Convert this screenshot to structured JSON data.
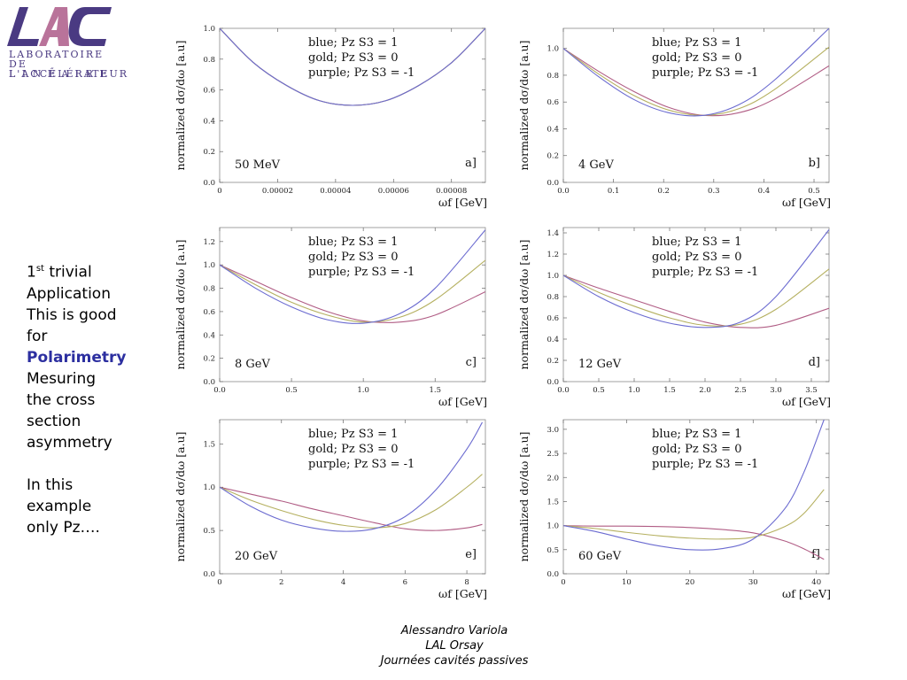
{
  "logo": {
    "lines": [
      "LABORATOIRE",
      "DE L'ACCÉLÉRATEUR",
      "L I N É A I R E"
    ],
    "colors": {
      "primary": "#4a3a82",
      "accent": "#b9739a"
    }
  },
  "sidebar": {
    "line1_num": "1",
    "line1_sup": "st",
    "line1_rest": " trivial",
    "lines": [
      "Application",
      "This is good",
      "for"
    ],
    "highlight": "Polarimetry",
    "lines2": [
      "Mesuring",
      "the cross",
      "section",
      "asymmetry"
    ],
    "lines3": [
      "In this",
      "example",
      "only Pz…."
    ]
  },
  "footer": {
    "author": "Alessandro Variola",
    "lab": "LAL Orsay",
    "event": "Journées cavités passives"
  },
  "colors": {
    "blue": "#6b6bd0",
    "gold": "#b5b060",
    "purple": "#b05c84"
  },
  "chart_data": [
    {
      "type": "line",
      "id": "a",
      "label": "a]",
      "energy": "50 MeV",
      "legend": [
        "blue; Pz S3 = 1",
        "gold; Pz S3 = 0",
        "purple; Pz S3 = -1"
      ],
      "xlabel": "ωf [GeV]",
      "ylabel": "normalized dσ/dω [a.u]",
      "xlim": [
        0,
        9.17e-05
      ],
      "ylim": [
        0,
        1.0
      ],
      "xticks": [
        0,
        2e-05,
        4e-05,
        6e-05,
        8e-05
      ],
      "xticklabels": [
        "0",
        "0.00002",
        "0.00004",
        "0.00006",
        "0.00008"
      ],
      "yticks": [
        0,
        0.2,
        0.4,
        0.6,
        0.8,
        1.0
      ],
      "yticklabels": [
        "0.0",
        "0.2",
        "0.4",
        "0.6",
        "0.8",
        "1.0"
      ],
      "series": [
        {
          "name": "blue; Pz S3 = 1",
          "color": "blue",
          "x": [
            0,
            1.15e-05,
            2.3e-05,
            3.45e-05,
            4.59e-05,
            5.73e-05,
            6.88e-05,
            8.02e-05,
            9.17e-05
          ],
          "y": [
            1.0,
            0.78,
            0.63,
            0.53,
            0.5,
            0.53,
            0.63,
            0.78,
            1.0
          ]
        },
        {
          "name": "gold; Pz S3 = 0",
          "color": "gold",
          "x": [
            0,
            1.15e-05,
            2.3e-05,
            3.45e-05,
            4.59e-05,
            5.73e-05,
            6.88e-05,
            8.02e-05,
            9.17e-05
          ],
          "y": [
            1.0,
            0.78,
            0.63,
            0.53,
            0.5,
            0.53,
            0.63,
            0.78,
            1.0
          ]
        },
        {
          "name": "purple; Pz S3 = -1",
          "color": "purple",
          "x": [
            0,
            1.15e-05,
            2.3e-05,
            3.45e-05,
            4.59e-05,
            5.73e-05,
            6.88e-05,
            8.02e-05,
            9.17e-05
          ],
          "y": [
            1.0,
            0.78,
            0.63,
            0.53,
            0.5,
            0.53,
            0.63,
            0.78,
            1.0
          ]
        }
      ]
    },
    {
      "type": "line",
      "id": "b",
      "label": "b]",
      "energy": "4 GeV",
      "legend": [
        "blue; Pz S3 = 1",
        "gold; Pz S3 = 0",
        "purple; Pz S3 = -1"
      ],
      "xlabel": "ωf [GeV]",
      "ylabel": "normalized dσ/dω [a.u]",
      "xlim": [
        0,
        0.53
      ],
      "ylim": [
        0,
        1.15
      ],
      "xticks": [
        0,
        0.1,
        0.2,
        0.3,
        0.4,
        0.5
      ],
      "xticklabels": [
        "0.0",
        "0.1",
        "0.2",
        "0.3",
        "0.4",
        "0.5"
      ],
      "yticks": [
        0,
        0.2,
        0.4,
        0.6,
        0.8,
        1.0
      ],
      "yticklabels": [
        "0.0",
        "0.2",
        "0.4",
        "0.6",
        "0.8",
        "1.0"
      ],
      "series": [
        {
          "name": "blue; Pz S3 = 1",
          "color": "blue",
          "x": [
            0,
            0.07,
            0.14,
            0.21,
            0.28,
            0.35,
            0.42,
            0.53
          ],
          "y": [
            1.0,
            0.79,
            0.62,
            0.52,
            0.5,
            0.58,
            0.76,
            1.15
          ]
        },
        {
          "name": "gold; Pz S3 = 0",
          "color": "gold",
          "x": [
            0,
            0.07,
            0.14,
            0.21,
            0.28,
            0.35,
            0.42,
            0.53
          ],
          "y": [
            1.0,
            0.81,
            0.65,
            0.54,
            0.5,
            0.55,
            0.69,
            1.01
          ]
        },
        {
          "name": "purple; Pz S3 = -1",
          "color": "purple",
          "x": [
            0,
            0.07,
            0.14,
            0.21,
            0.28,
            0.35,
            0.42,
            0.53
          ],
          "y": [
            1.0,
            0.83,
            0.68,
            0.56,
            0.5,
            0.52,
            0.62,
            0.87
          ]
        }
      ]
    },
    {
      "type": "line",
      "id": "c",
      "label": "c]",
      "energy": "8 GeV",
      "legend": [
        "blue; Pz S3 = 1",
        "gold; Pz S3 = 0",
        "purple; Pz S3 = -1"
      ],
      "xlabel": "ωf [GeV]",
      "ylabel": "normalized dσ/dω [a.u]",
      "xlim": [
        0,
        1.85
      ],
      "ylim": [
        0,
        1.32
      ],
      "xticks": [
        0,
        0.5,
        1.0,
        1.5
      ],
      "xticklabels": [
        "0.0",
        "0.5",
        "1.0",
        "1.5"
      ],
      "yticks": [
        0,
        0.2,
        0.4,
        0.6,
        0.8,
        1.0,
        1.2
      ],
      "yticklabels": [
        "0.0",
        "0.2",
        "0.4",
        "0.6",
        "0.8",
        "1.0",
        "1.2"
      ],
      "series": [
        {
          "name": "blue; Pz S3 = 1",
          "color": "blue",
          "x": [
            0,
            0.25,
            0.5,
            0.75,
            1.0,
            1.25,
            1.5,
            1.85
          ],
          "y": [
            1.0,
            0.8,
            0.64,
            0.53,
            0.5,
            0.58,
            0.8,
            1.3
          ]
        },
        {
          "name": "gold; Pz S3 = 0",
          "color": "gold",
          "x": [
            0,
            0.25,
            0.5,
            0.75,
            1.0,
            1.25,
            1.5,
            1.85
          ],
          "y": [
            1.0,
            0.83,
            0.68,
            0.57,
            0.51,
            0.55,
            0.7,
            1.04
          ]
        },
        {
          "name": "purple; Pz S3 = -1",
          "color": "purple",
          "x": [
            0,
            0.25,
            0.5,
            0.75,
            1.0,
            1.25,
            1.5,
            1.85
          ],
          "y": [
            1.0,
            0.86,
            0.72,
            0.6,
            0.52,
            0.51,
            0.57,
            0.77
          ]
        }
      ]
    },
    {
      "type": "line",
      "id": "d",
      "label": "d]",
      "energy": "12 GeV",
      "legend": [
        "blue; Pz S3 = 1",
        "gold; Pz S3 = 0",
        "purple; Pz S3 = -1"
      ],
      "xlabel": "ωf [GeV]",
      "ylabel": "normalized dσ/dω [a.u]",
      "xlim": [
        0,
        3.75
      ],
      "ylim": [
        0,
        1.45
      ],
      "xticks": [
        0,
        0.5,
        1.0,
        1.5,
        2.0,
        2.5,
        3.0,
        3.5
      ],
      "xticklabels": [
        "0.0",
        "0.5",
        "1.0",
        "1.5",
        "2.0",
        "2.5",
        "3.0",
        "3.5"
      ],
      "yticks": [
        0,
        0.2,
        0.4,
        0.6,
        0.8,
        1.0,
        1.2,
        1.4
      ],
      "yticklabels": [
        "0.0",
        "0.2",
        "0.4",
        "0.6",
        "0.8",
        "1.0",
        "1.2",
        "1.4"
      ],
      "series": [
        {
          "name": "blue; Pz S3 = 1",
          "color": "blue",
          "x": [
            0,
            0.5,
            1.0,
            1.5,
            2.0,
            2.5,
            3.0,
            3.75
          ],
          "y": [
            1.0,
            0.8,
            0.65,
            0.55,
            0.51,
            0.56,
            0.8,
            1.43
          ]
        },
        {
          "name": "gold; Pz S3 = 0",
          "color": "gold",
          "x": [
            0,
            0.5,
            1.0,
            1.5,
            2.0,
            2.5,
            3.0,
            3.75
          ],
          "y": [
            1.0,
            0.84,
            0.71,
            0.6,
            0.53,
            0.54,
            0.68,
            1.06
          ]
        },
        {
          "name": "purple; Pz S3 = -1",
          "color": "purple",
          "x": [
            0,
            0.5,
            1.0,
            1.5,
            2.0,
            2.5,
            3.0,
            3.75
          ],
          "y": [
            1.0,
            0.88,
            0.77,
            0.66,
            0.56,
            0.51,
            0.53,
            0.69
          ]
        }
      ]
    },
    {
      "type": "line",
      "id": "e",
      "label": "e]",
      "energy": "20 GeV",
      "legend": [
        "blue; Pz S3 = 1",
        "gold; Pz S3 = 0",
        "purple; Pz S3 = -1"
      ],
      "xlabel": "ωf [GeV]",
      "ylabel": "normalized dσ/dω [a.u]",
      "xlim": [
        0,
        8.6
      ],
      "ylim": [
        0,
        1.78
      ],
      "xticks": [
        0,
        2,
        4,
        6,
        8
      ],
      "xticklabels": [
        "0",
        "2",
        "4",
        "6",
        "8"
      ],
      "yticks": [
        0,
        0.5,
        1.0,
        1.5
      ],
      "yticklabels": [
        "0.0",
        "0.5",
        "1.0",
        "1.5"
      ],
      "series": [
        {
          "name": "blue; Pz S3 = 1",
          "color": "blue",
          "x": [
            0,
            1,
            2,
            3,
            4,
            5,
            6,
            7,
            8,
            8.5
          ],
          "y": [
            1.0,
            0.78,
            0.62,
            0.53,
            0.49,
            0.52,
            0.66,
            0.97,
            1.44,
            1.75
          ]
        },
        {
          "name": "gold; Pz S3 = 0",
          "color": "gold",
          "x": [
            0,
            1,
            2,
            3,
            4,
            5,
            6,
            7,
            8,
            8.5
          ],
          "y": [
            1.0,
            0.85,
            0.73,
            0.63,
            0.56,
            0.53,
            0.58,
            0.74,
            1.0,
            1.15
          ]
        },
        {
          "name": "purple; Pz S3 = -1",
          "color": "purple",
          "x": [
            0,
            1,
            2,
            3,
            4,
            5,
            6,
            7,
            8,
            8.5
          ],
          "y": [
            1.0,
            0.92,
            0.84,
            0.75,
            0.67,
            0.59,
            0.52,
            0.5,
            0.53,
            0.57
          ]
        }
      ]
    },
    {
      "type": "line",
      "id": "f",
      "label": "f]",
      "energy": "60 GeV",
      "legend": [
        "blue; Pz S3 = 1",
        "gold; Pz S3 = 0",
        "purple; Pz S3 = -1"
      ],
      "xlabel": "ωf [GeV]",
      "ylabel": "normalized dσ/dω [a.u]",
      "xlim": [
        0,
        42
      ],
      "ylim": [
        0,
        3.2
      ],
      "xticks": [
        0,
        10,
        20,
        30,
        40
      ],
      "xticklabels": [
        "0",
        "10",
        "20",
        "30",
        "40"
      ],
      "yticks": [
        0,
        0.5,
        1.0,
        1.5,
        2.0,
        2.5,
        3.0
      ],
      "yticklabels": [
        "0.0",
        "0.5",
        "1.0",
        "1.5",
        "2.0",
        "2.5",
        "3.0"
      ],
      "series": [
        {
          "name": "blue; Pz S3 = 1",
          "color": "blue",
          "x": [
            0,
            5,
            10,
            15,
            20,
            25,
            30,
            35,
            38,
            41.2
          ],
          "y": [
            1.0,
            0.88,
            0.72,
            0.58,
            0.5,
            0.52,
            0.72,
            1.35,
            2.1,
            3.2
          ]
        },
        {
          "name": "gold; Pz S3 = 0",
          "color": "gold",
          "x": [
            0,
            5,
            10,
            15,
            20,
            25,
            30,
            35,
            38,
            41.2
          ],
          "y": [
            1.0,
            0.94,
            0.86,
            0.79,
            0.74,
            0.72,
            0.76,
            0.98,
            1.25,
            1.75
          ]
        },
        {
          "name": "purple; Pz S3 = -1",
          "color": "purple",
          "x": [
            0,
            5,
            10,
            15,
            20,
            25,
            30,
            35,
            38,
            41.2
          ],
          "y": [
            1.0,
            0.99,
            0.99,
            0.98,
            0.96,
            0.92,
            0.85,
            0.68,
            0.52,
            0.3
          ]
        }
      ]
    }
  ]
}
